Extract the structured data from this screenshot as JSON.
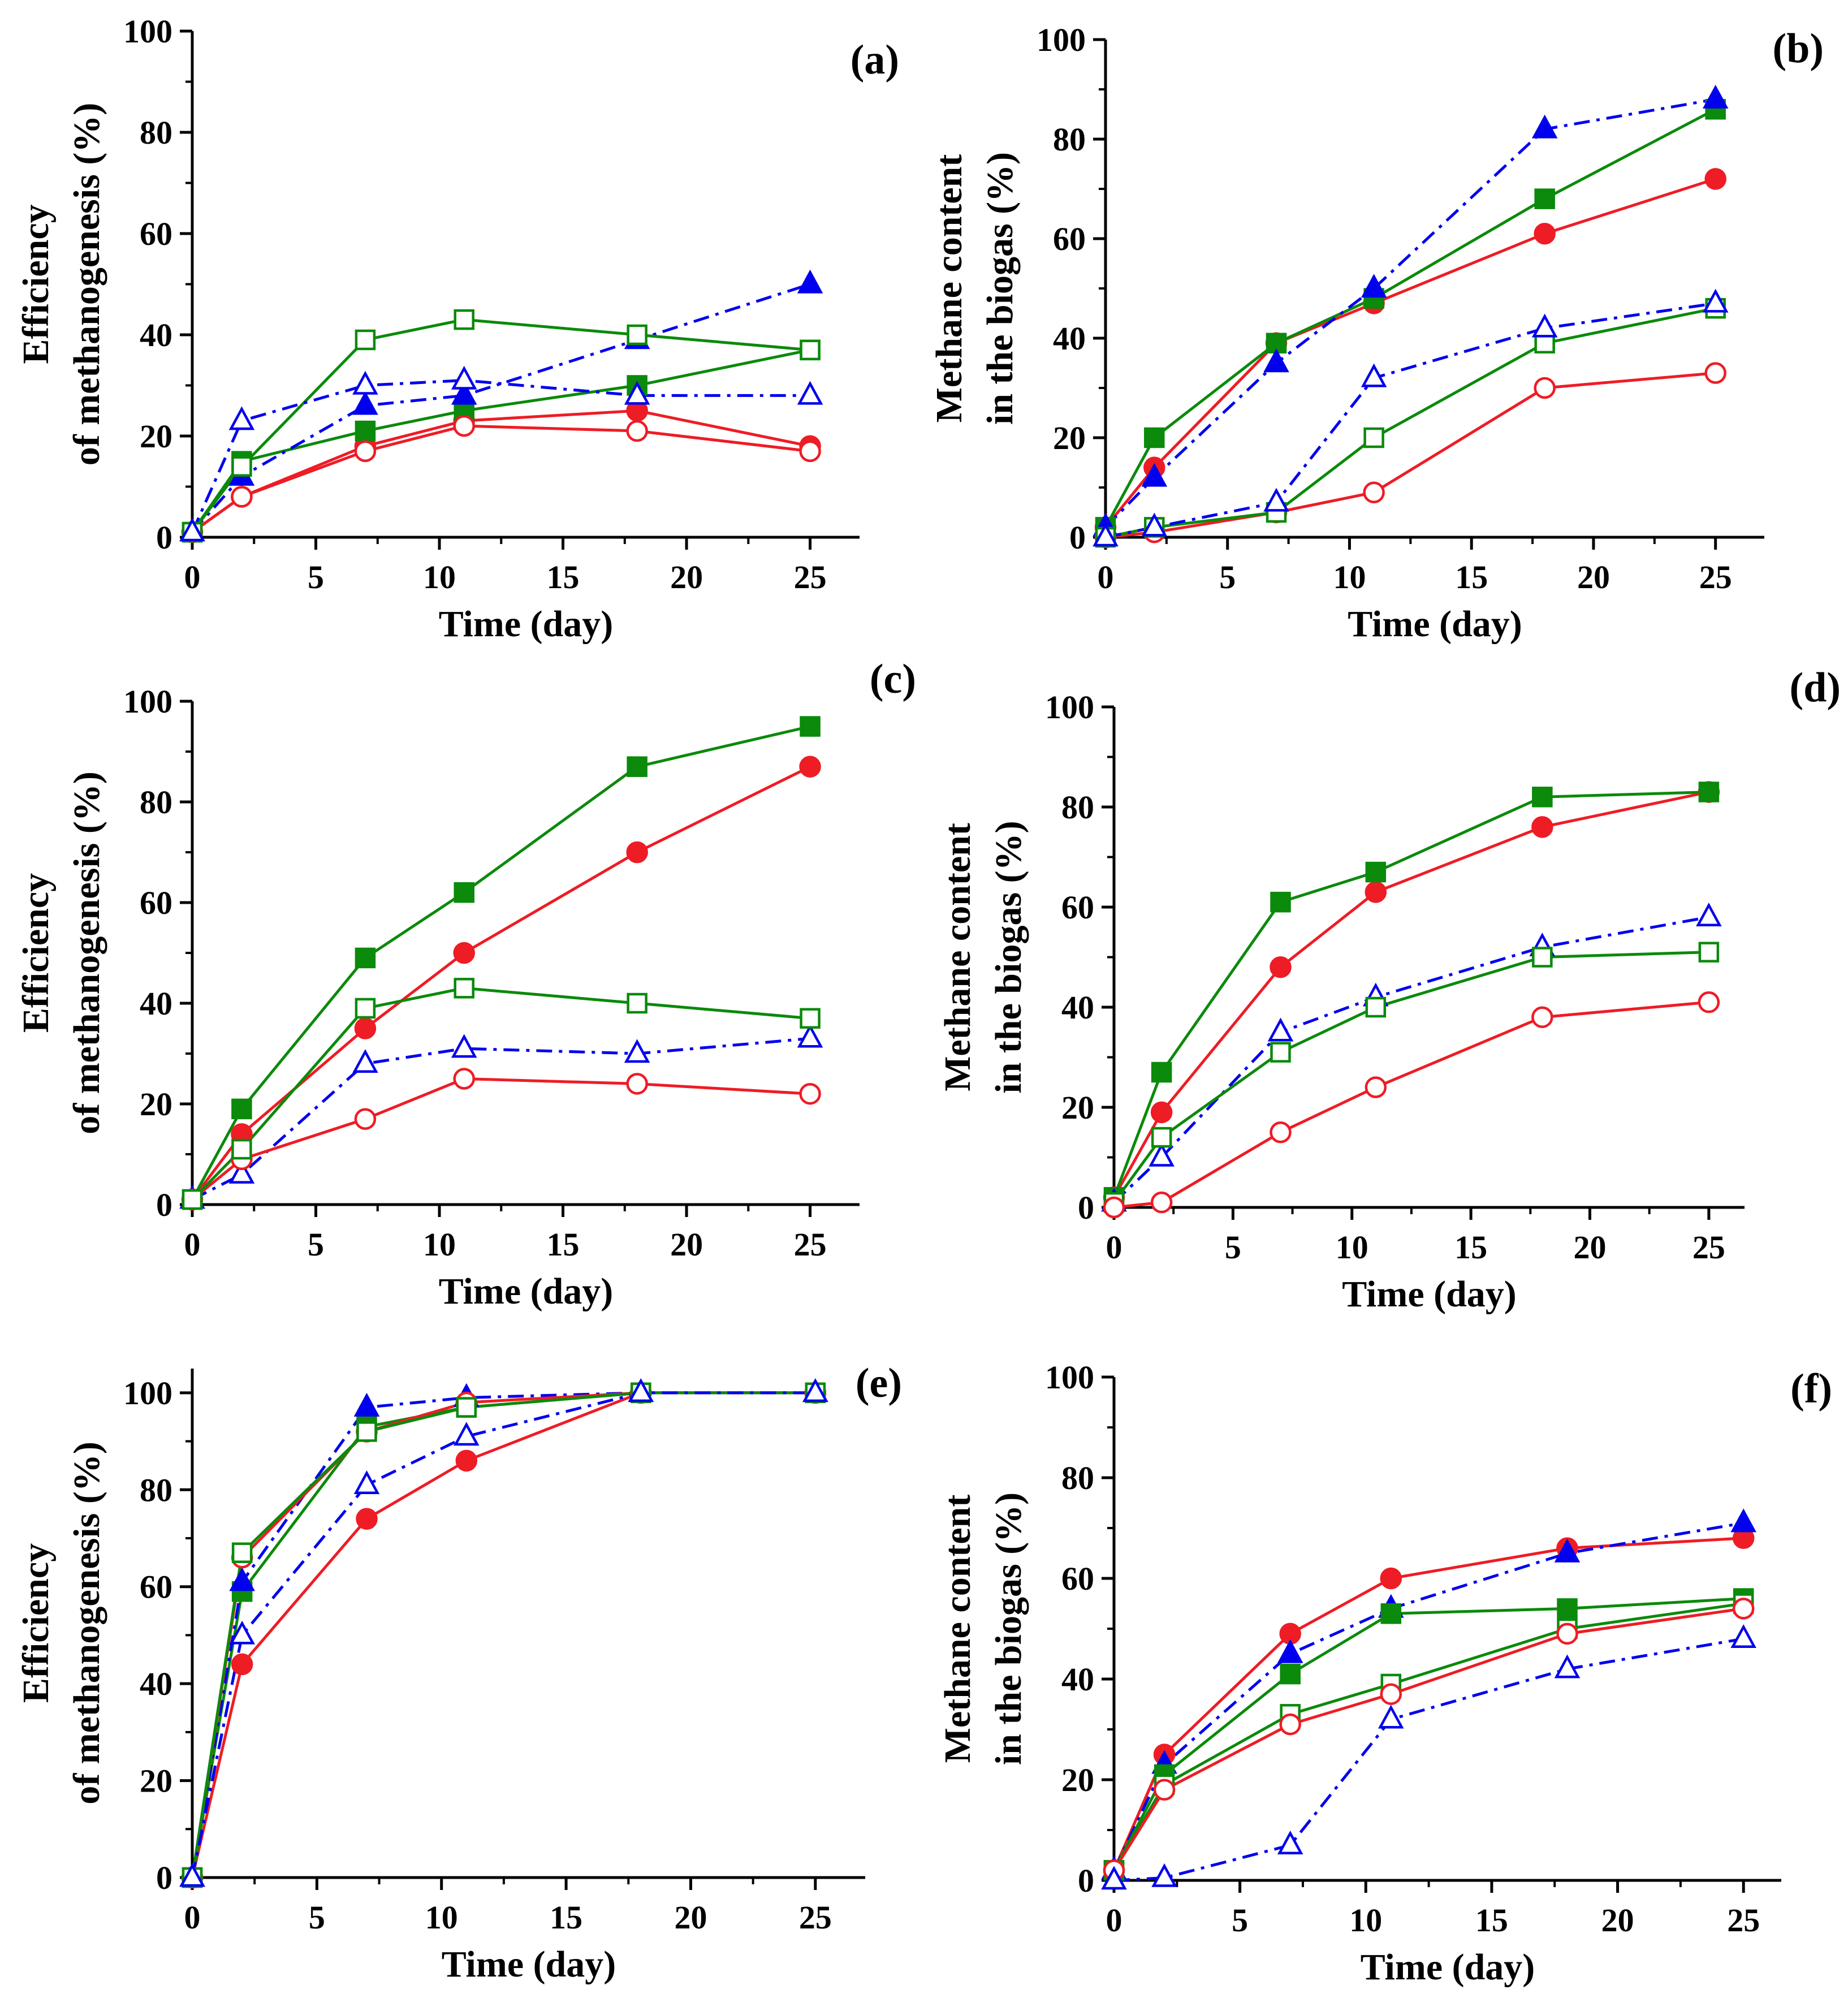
{
  "figure": {
    "series_styles": [
      {
        "key": "red_filled",
        "color": "#ee1c25",
        "marker": "circle",
        "filled": true,
        "dash": "solid"
      },
      {
        "key": "green_filled",
        "color": "#0b8a0b",
        "marker": "square",
        "filled": true,
        "dash": "solid"
      },
      {
        "key": "blue_filled",
        "color": "#0000ee",
        "marker": "triangle",
        "filled": true,
        "dash": "dashdot"
      },
      {
        "key": "red_open",
        "color": "#ee1c25",
        "marker": "circle",
        "filled": false,
        "dash": "solid"
      },
      {
        "key": "green_open",
        "color": "#0b8a0b",
        "marker": "square",
        "filled": false,
        "dash": "solid"
      },
      {
        "key": "blue_open",
        "color": "#0000ee",
        "marker": "triangle",
        "filled": false,
        "dash": "dashdot"
      }
    ]
  },
  "chart_data": [
    {
      "type": "line",
      "panel_label": "(a)",
      "xlabel": "Time (day)",
      "ylabel": [
        "Efficiency",
        "of  methanogenesis (%)"
      ],
      "xlim": [
        0,
        27
      ],
      "ylim": [
        0,
        100
      ],
      "xticks": [
        "0",
        "5",
        "10",
        "15",
        "20",
        "25"
      ],
      "yticks": [
        "0",
        "20",
        "40",
        "60",
        "80",
        "100"
      ],
      "x": [
        0,
        2,
        7,
        11,
        18,
        25
      ],
      "series": [
        {
          "style": "red_filled",
          "values": [
            1,
            8,
            18,
            23,
            25,
            18
          ]
        },
        {
          "style": "green_filled",
          "values": [
            1,
            15,
            21,
            25,
            30,
            37
          ]
        },
        {
          "style": "blue_filled",
          "values": [
            1,
            12,
            26,
            28,
            39,
            50
          ]
        },
        {
          "style": "red_open",
          "values": [
            1,
            8,
            17,
            22,
            21,
            17
          ]
        },
        {
          "style": "green_open",
          "values": [
            1,
            14,
            39,
            43,
            40,
            37
          ]
        },
        {
          "style": "blue_open",
          "values": [
            1,
            23,
            30,
            31,
            28,
            28
          ]
        }
      ]
    },
    {
      "type": "line",
      "panel_label": "(b)",
      "xlabel": "Time (day)",
      "ylabel": [
        "Methane content",
        "in the biogas (%)"
      ],
      "xlim": [
        0,
        27
      ],
      "ylim": [
        0,
        100
      ],
      "xticks": [
        "0",
        "5",
        "10",
        "15",
        "20",
        "25"
      ],
      "yticks": [
        "0",
        "20",
        "40",
        "60",
        "80",
        "100"
      ],
      "x": [
        0,
        2,
        7,
        11,
        18,
        25
      ],
      "series": [
        {
          "style": "red_filled",
          "values": [
            2,
            14,
            39,
            47,
            61,
            72
          ]
        },
        {
          "style": "green_filled",
          "values": [
            2,
            20,
            39,
            48,
            68,
            86
          ]
        },
        {
          "style": "blue_filled",
          "values": [
            2,
            12,
            35,
            50,
            82,
            88
          ]
        },
        {
          "style": "red_open",
          "values": [
            0,
            1,
            5,
            9,
            30,
            33
          ]
        },
        {
          "style": "green_open",
          "values": [
            0,
            2,
            5,
            20,
            39,
            46
          ]
        },
        {
          "style": "blue_open",
          "values": [
            0,
            2,
            7,
            32,
            42,
            47
          ]
        }
      ]
    },
    {
      "type": "line",
      "panel_label": "(c)",
      "xlabel": "Time (day)",
      "ylabel": [
        "Efficiency",
        "of  methanogenesis (%)"
      ],
      "xlim": [
        0,
        27
      ],
      "ylim": [
        0,
        100
      ],
      "xticks": [
        "0",
        "5",
        "10",
        "15",
        "20",
        "25"
      ],
      "yticks": [
        "0",
        "20",
        "40",
        "60",
        "80",
        "100"
      ],
      "x": [
        0,
        2,
        7,
        11,
        18,
        25
      ],
      "series": [
        {
          "style": "red_filled",
          "values": [
            1,
            14,
            35,
            50,
            70,
            87
          ]
        },
        {
          "style": "green_filled",
          "values": [
            1,
            19,
            49,
            62,
            87,
            95
          ]
        },
        {
          "style": "blue_open",
          "values": [
            1,
            6,
            28,
            31,
            30,
            33
          ]
        },
        {
          "style": "red_open",
          "values": [
            1,
            9,
            17,
            25,
            24,
            22
          ]
        },
        {
          "style": "green_open",
          "values": [
            1,
            11,
            39,
            43,
            40,
            37
          ]
        }
      ]
    },
    {
      "type": "line",
      "panel_label": "(d)",
      "xlabel": "Time (day)",
      "ylabel": [
        "Methane content",
        "in the biogas (%)"
      ],
      "xlim": [
        0,
        26.5
      ],
      "ylim": [
        0,
        100
      ],
      "xticks": [
        "0",
        "5",
        "10",
        "15",
        "20",
        "25"
      ],
      "yticks": [
        "0",
        "20",
        "40",
        "60",
        "80",
        "100"
      ],
      "x": [
        0,
        2,
        7,
        11,
        18,
        25
      ],
      "series": [
        {
          "style": "red_filled",
          "values": [
            2,
            19,
            48,
            63,
            76,
            83
          ]
        },
        {
          "style": "green_filled",
          "values": [
            2,
            27,
            61,
            67,
            82,
            83
          ]
        },
        {
          "style": "blue_open",
          "values": [
            1,
            10,
            35,
            42,
            52,
            58
          ]
        },
        {
          "style": "green_open",
          "values": [
            1,
            14,
            31,
            40,
            50,
            51
          ]
        },
        {
          "style": "red_open",
          "values": [
            0,
            1,
            15,
            24,
            38,
            41
          ]
        }
      ]
    },
    {
      "type": "line",
      "panel_label": "(e)",
      "xlabel": "Time (day)",
      "ylabel": [
        "Efficiency",
        "of  methanogenesis (%)"
      ],
      "xlim": [
        0,
        27
      ],
      "ylim": [
        0,
        105
      ],
      "xticks": [
        "0",
        "5",
        "10",
        "15",
        "20",
        "25"
      ],
      "yticks": [
        "0",
        "20",
        "40",
        "60",
        "80",
        "100"
      ],
      "x": [
        0,
        2,
        7,
        11,
        18,
        25
      ],
      "series": [
        {
          "style": "red_filled",
          "values": [
            0,
            44,
            74,
            86,
            100,
            100
          ]
        },
        {
          "style": "green_filled",
          "values": [
            0,
            59,
            93,
            97,
            100,
            100
          ]
        },
        {
          "style": "blue_filled",
          "values": [
            0,
            61,
            97,
            99,
            100,
            100
          ]
        },
        {
          "style": "red_open",
          "values": [
            0,
            66,
            92,
            98,
            100,
            100
          ]
        },
        {
          "style": "green_open",
          "values": [
            0,
            67,
            92,
            97,
            100,
            100
          ]
        },
        {
          "style": "blue_open",
          "values": [
            0,
            50,
            81,
            91,
            100,
            100
          ]
        }
      ]
    },
    {
      "type": "line",
      "panel_label": "(f)",
      "xlabel": "Time (day)",
      "ylabel": [
        "Methane content",
        "in the biogas (%)"
      ],
      "xlim": [
        0,
        26.5
      ],
      "ylim": [
        0,
        100
      ],
      "xticks": [
        "0",
        "5",
        "10",
        "15",
        "20",
        "25"
      ],
      "yticks": [
        "0",
        "20",
        "40",
        "60",
        "80",
        "100"
      ],
      "x": [
        0,
        2,
        7,
        11,
        18,
        25
      ],
      "series": [
        {
          "style": "red_filled",
          "values": [
            2,
            25,
            49,
            60,
            66,
            68
          ]
        },
        {
          "style": "blue_filled",
          "values": [
            2,
            23,
            45,
            54,
            65,
            71
          ]
        },
        {
          "style": "green_filled",
          "values": [
            2,
            21,
            41,
            53,
            54,
            56
          ]
        },
        {
          "style": "green_open",
          "values": [
            2,
            19,
            33,
            39,
            50,
            55
          ]
        },
        {
          "style": "red_open",
          "values": [
            2,
            18,
            31,
            37,
            49,
            54
          ]
        },
        {
          "style": "blue_open",
          "values": [
            0,
            0.5,
            7,
            32,
            42,
            48
          ]
        }
      ]
    }
  ]
}
